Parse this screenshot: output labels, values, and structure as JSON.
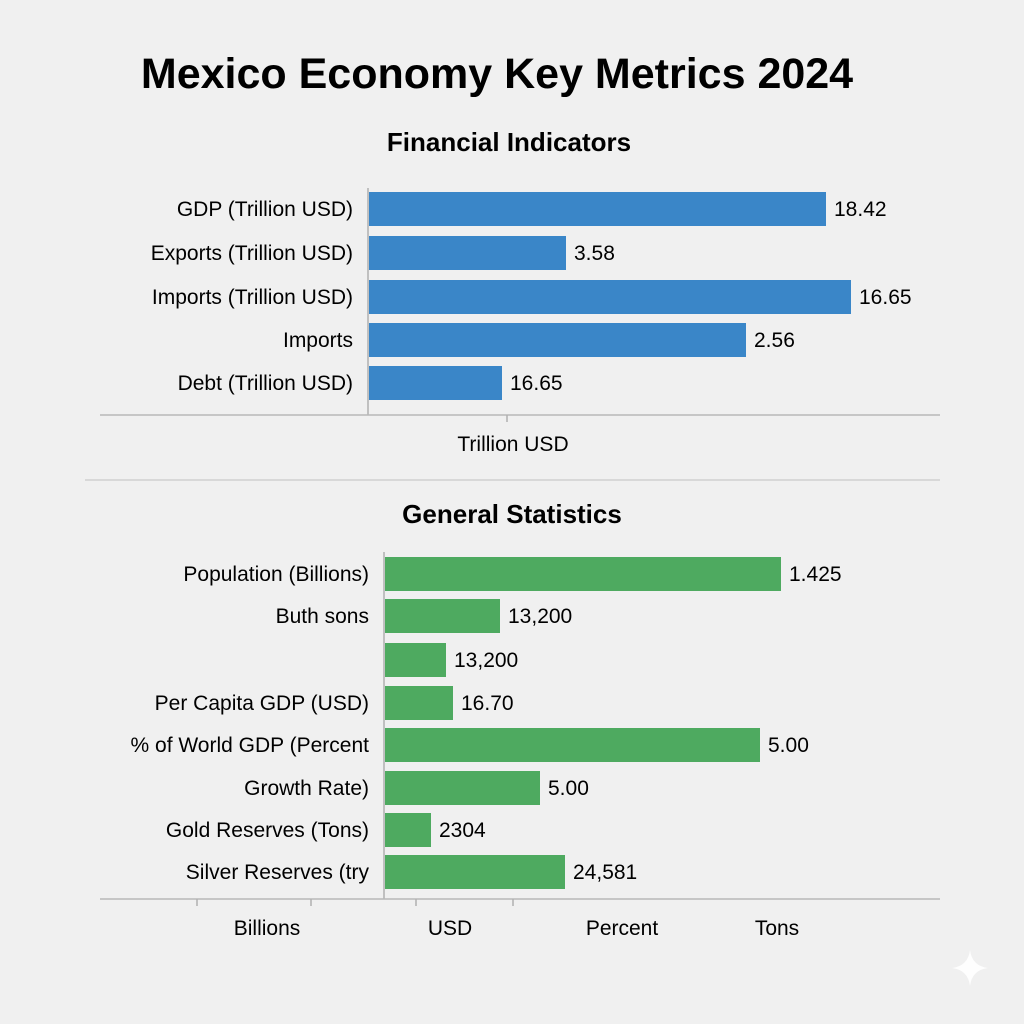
{
  "title": "Mexico Economy Key Metrics 2024",
  "colors": {
    "financial": "#3a86c8",
    "general": "#4eaa60",
    "background": "#f0f0f0"
  },
  "icons": {
    "corner": "sparkle-icon"
  },
  "chart_data": [
    {
      "type": "bar",
      "orientation": "horizontal",
      "title": "Financial Indicators",
      "categories": [
        "GDP (Trillion USD)",
        "Exports (Trillion USD)",
        "Imports (Trillion USD)",
        "Imports",
        "Debt (Trillion USD)"
      ],
      "data_labels": [
        "18.42",
        "3.58",
        "16.65",
        "2.56",
        "16.65"
      ],
      "values": [
        18.42,
        3.58,
        16.65,
        2.56,
        16.65
      ],
      "xlabel": "Trillion USD",
      "grid": false
    },
    {
      "type": "bar",
      "orientation": "horizontal",
      "title": "General Statistics",
      "categories": [
        "Population (Billions)",
        "Buth sons",
        "",
        "Per Capita GDP (USD)",
        "% of World GDP (Percent",
        "Growth Rate)",
        "Gold Reserves (Tons)",
        "Silver Reserves (try"
      ],
      "data_labels": [
        "1.425",
        "13,200",
        "13,200",
        "16.70",
        "5.00",
        "5.00",
        "2304",
        "24,581"
      ],
      "values": [
        1.425,
        13200,
        13200,
        16.7,
        5.0,
        5.0,
        2304,
        24581
      ],
      "x_tick_labels": [
        "Billions",
        "USD",
        "Percent",
        "Tons"
      ],
      "grid": false
    }
  ]
}
